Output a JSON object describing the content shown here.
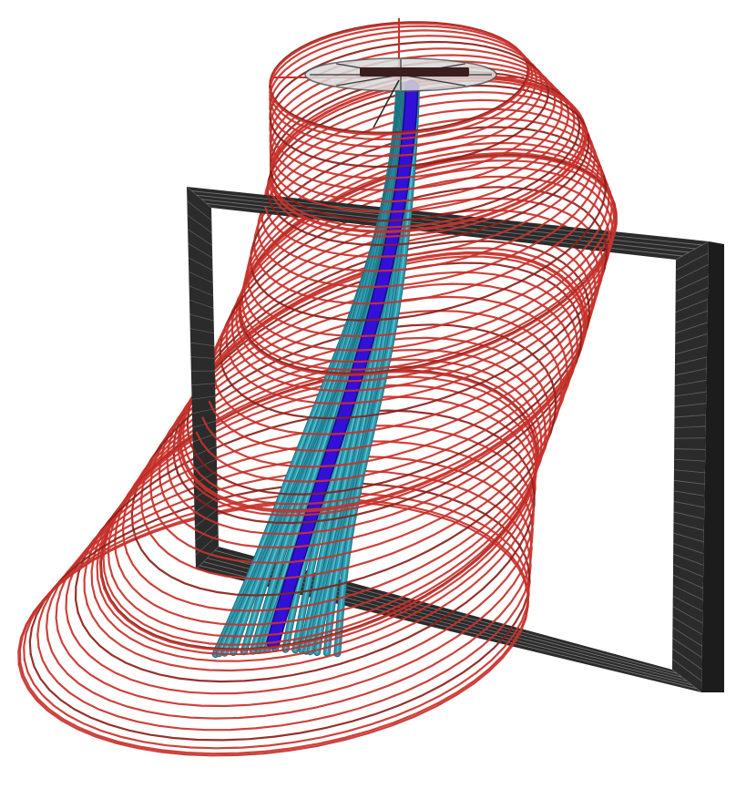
{
  "scene": {
    "background": "#ffffff",
    "colors": {
      "vortex_tube_rings": "#c8322b",
      "vortex_tube_rings_dark": "#8e1f1a",
      "streamlines": "#2a9bb0",
      "streamlines_highlight": "#6fd0dc",
      "core_streamline": "#3210d8",
      "frame_fill": "#2b2b2b",
      "frame_light": "#8a8a8a",
      "rotor_disc": "#d9d9d9",
      "rotor_hub": "#3a1e1e"
    },
    "objects": {
      "frame": "rectangular-frame",
      "rotor": "rotor-disc",
      "tube": "helical-vortex-tube",
      "streamlines": "streamline-bundle",
      "core": "core-streamline"
    }
  }
}
